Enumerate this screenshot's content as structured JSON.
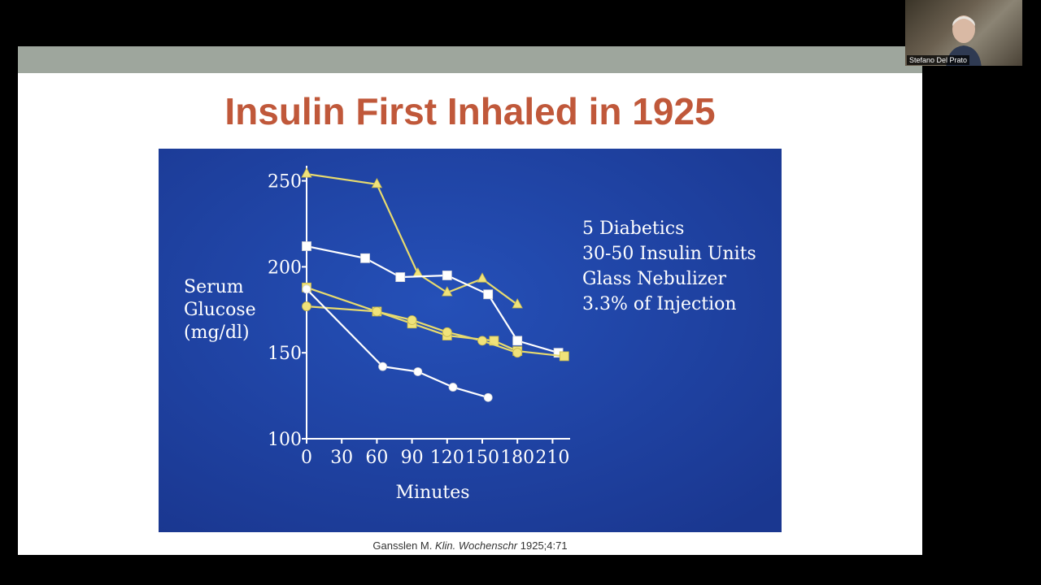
{
  "slide": {
    "title": "Insulin First Inhaled in 1925",
    "citation_author": "Gansslen M. ",
    "citation_journal": "Klin. Wochenschr",
    "citation_ref": " 1925;4:71"
  },
  "video": {
    "participant_name": "Stefano Del Prato"
  },
  "chart_data": {
    "type": "line",
    "ylabel": [
      "Serum",
      "Glucose",
      "(mg/dl)"
    ],
    "xlabel": "Minutes",
    "x_ticks": [
      0,
      30,
      60,
      90,
      120,
      150,
      180,
      210
    ],
    "y_ticks": [
      100,
      150,
      200,
      250
    ],
    "xlim": [
      0,
      225
    ],
    "ylim": [
      100,
      255
    ],
    "annotation": [
      "5 Diabetics",
      "30-50 Insulin Units",
      "Glass Nebulizer",
      "3.3% of Injection"
    ],
    "colors": {
      "background": "#1d3f9e",
      "yellow": "#e8db6e",
      "white": "#ffffff",
      "text": "#ffffff"
    },
    "series": [
      {
        "marker": "triangle",
        "color": "#e8db6e",
        "points": [
          [
            0,
            254
          ],
          [
            60,
            248
          ],
          [
            95,
            196
          ],
          [
            120,
            185
          ],
          [
            150,
            193
          ],
          [
            180,
            178
          ]
        ]
      },
      {
        "marker": "square-white",
        "color": "#ffffff",
        "points": [
          [
            0,
            212
          ],
          [
            50,
            205
          ],
          [
            80,
            194
          ],
          [
            120,
            195
          ],
          [
            155,
            184
          ],
          [
            180,
            157
          ],
          [
            215,
            150
          ]
        ]
      },
      {
        "marker": "square-yellow",
        "color": "#e8db6e",
        "points": [
          [
            0,
            188
          ],
          [
            60,
            174
          ],
          [
            90,
            167
          ],
          [
            120,
            160
          ],
          [
            160,
            157
          ],
          [
            180,
            151
          ],
          [
            220,
            148
          ]
        ]
      },
      {
        "marker": "circle-yellow",
        "color": "#e8db6e",
        "points": [
          [
            0,
            177
          ],
          [
            60,
            174
          ],
          [
            90,
            169
          ],
          [
            120,
            162
          ],
          [
            150,
            157
          ],
          [
            180,
            150
          ]
        ]
      },
      {
        "marker": "circle-white",
        "color": "#ffffff",
        "points": [
          [
            0,
            187
          ],
          [
            65,
            142
          ],
          [
            95,
            139
          ],
          [
            125,
            130
          ],
          [
            155,
            124
          ]
        ]
      }
    ]
  }
}
